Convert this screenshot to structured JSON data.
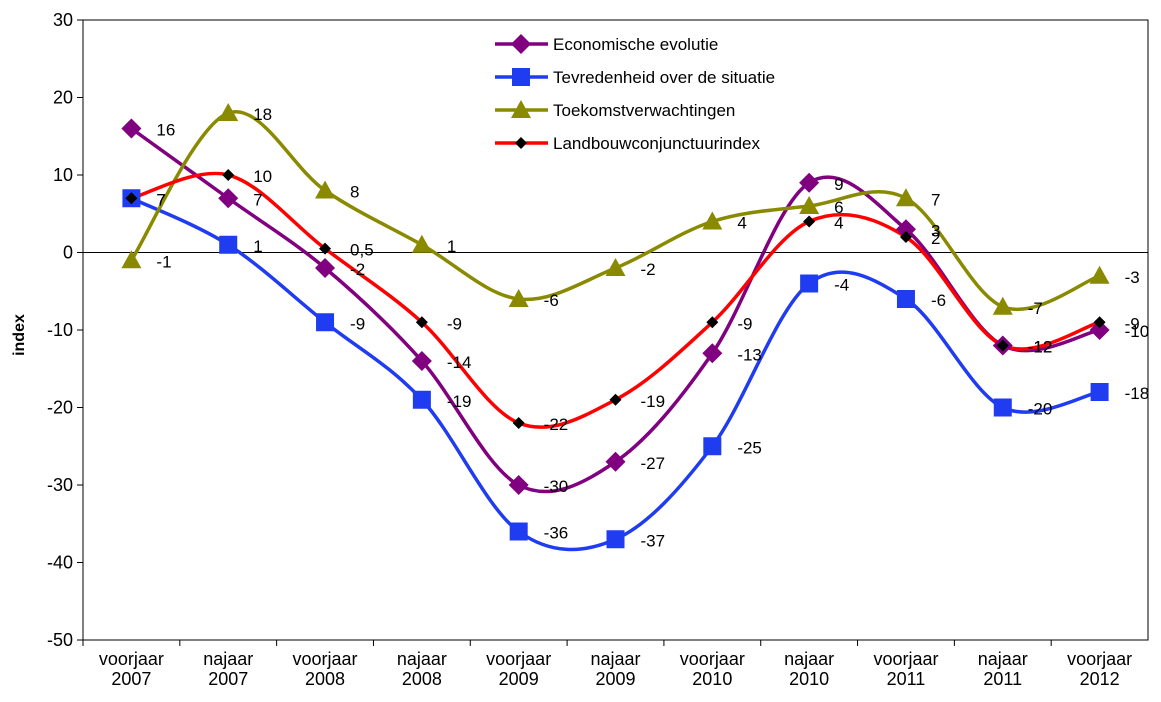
{
  "chart_data": {
    "type": "line",
    "y_label": "index",
    "categories": [
      [
        "voorjaar",
        "2007"
      ],
      [
        "najaar",
        "2007"
      ],
      [
        "voorjaar",
        "2008"
      ],
      [
        "najaar",
        "2008"
      ],
      [
        "voorjaar",
        "2009"
      ],
      [
        "najaar",
        "2009"
      ],
      [
        "voorjaar",
        "2010"
      ],
      [
        "najaar",
        "2010"
      ],
      [
        "voorjaar",
        "2011"
      ],
      [
        "najaar",
        "2011"
      ],
      [
        "voorjaar",
        "2012"
      ]
    ],
    "ylim": [
      -50,
      30
    ],
    "yticks": [
      -50,
      -40,
      -30,
      -20,
      -10,
      0,
      10,
      20,
      30
    ],
    "grid": false,
    "legend": "top",
    "series": [
      {
        "name": "Economische evolutie",
        "color": "#800080",
        "marker": "diamond",
        "values": [
          16,
          7,
          -2,
          -14,
          -30,
          -27,
          -13,
          9,
          3,
          -12,
          -10
        ]
      },
      {
        "name": "Tevredenheid over de situatie",
        "color": "#1f3cf0",
        "marker": "square",
        "values": [
          7,
          1,
          -9,
          -19,
          -36,
          -37,
          -25,
          -4,
          -6,
          -20,
          -18
        ]
      },
      {
        "name": "Toekomstverwachtingen",
        "color": "#8a8a00",
        "marker": "triangle",
        "values": [
          -1,
          18,
          8,
          1,
          -6,
          -2,
          4,
          6,
          7,
          -7,
          -3
        ]
      },
      {
        "name": "Landbouwconjunctuurindex",
        "color": "#ff0000",
        "marker_color": "#000000",
        "marker": "small-diamond",
        "values": [
          7,
          10,
          0.5,
          -9,
          -22,
          -19,
          -9,
          4,
          2,
          -12,
          -9
        ],
        "value_labels": [
          "7",
          "10",
          "0,5",
          "-9",
          "-22",
          "-19",
          "-9",
          "4",
          "2",
          "-12",
          "-9"
        ]
      }
    ]
  }
}
